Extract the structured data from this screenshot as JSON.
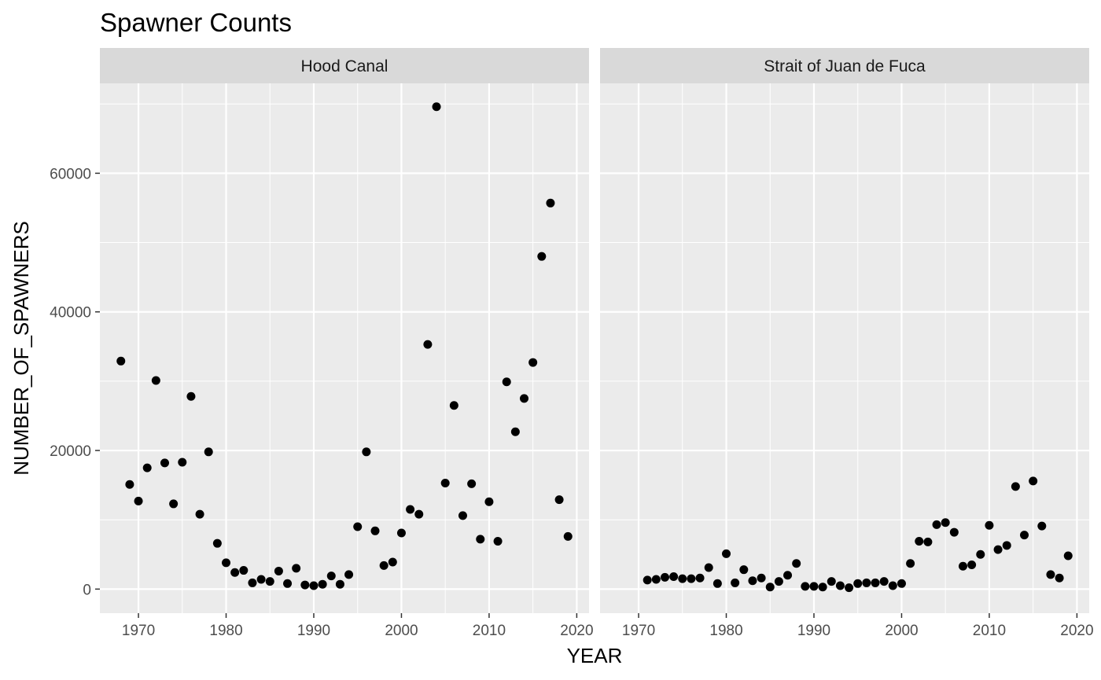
{
  "chart_data": {
    "type": "scatter",
    "title": "Spawner Counts",
    "xlabel": "YEAR",
    "ylabel": "NUMBER_OF_SPAWNERS",
    "xlim": [
      1965.6,
      2021.4
    ],
    "ylim": [
      -3475,
      72975
    ],
    "x_ticks": [
      1970,
      1980,
      1990,
      2000,
      2010,
      2020
    ],
    "y_ticks": [
      0,
      20000,
      40000,
      60000
    ],
    "x_tick_labels": [
      "1970",
      "1980",
      "1990",
      "2000",
      "2010",
      "2020"
    ],
    "y_tick_labels": [
      "0",
      "20000",
      "40000",
      "60000"
    ],
    "grid": true,
    "colors": {
      "panel_bg": "#EBEBEB",
      "strip_bg": "#D9D9D9",
      "grid": "#FFFFFF",
      "point": "#000000"
    },
    "facets": [
      {
        "label": "Hood Canal",
        "x": [
          1968,
          1969,
          1970,
          1971,
          1972,
          1973,
          1974,
          1975,
          1976,
          1977,
          1978,
          1979,
          1980,
          1981,
          1982,
          1983,
          1984,
          1985,
          1986,
          1987,
          1988,
          1989,
          1990,
          1991,
          1992,
          1993,
          1994,
          1995,
          1996,
          1997,
          1998,
          1999,
          2000,
          2001,
          2002,
          2003,
          2004,
          2005,
          2006,
          2007,
          2008,
          2009,
          2010,
          2011,
          2012,
          2013,
          2014,
          2015,
          2016,
          2017,
          2018,
          2019
        ],
        "y": [
          32900,
          15100,
          12700,
          17500,
          30100,
          18200,
          12300,
          18300,
          27800,
          10800,
          19800,
          6600,
          3800,
          2400,
          2700,
          900,
          1400,
          1100,
          2600,
          800,
          3000,
          600,
          500,
          700,
          1900,
          700,
          2100,
          9000,
          19800,
          8400,
          3400,
          3900,
          8100,
          11500,
          10800,
          35300,
          69600,
          15300,
          26500,
          10600,
          15200,
          7200,
          12600,
          6900,
          29900,
          22700,
          27500,
          32700,
          48000,
          55700,
          12900,
          7600
        ]
      },
      {
        "label": "Strait of Juan de Fuca",
        "x": [
          1971,
          1972,
          1973,
          1974,
          1975,
          1976,
          1977,
          1978,
          1979,
          1980,
          1981,
          1982,
          1983,
          1984,
          1985,
          1986,
          1987,
          1988,
          1989,
          1990,
          1991,
          1992,
          1993,
          1994,
          1995,
          1996,
          1997,
          1998,
          1999,
          2000,
          2001,
          2002,
          2003,
          2004,
          2005,
          2006,
          2007,
          2008,
          2009,
          2010,
          2011,
          2012,
          2013,
          2014,
          2015,
          2016,
          2017,
          2018,
          2019
        ],
        "y": [
          1300,
          1400,
          1700,
          1800,
          1500,
          1500,
          1600,
          3100,
          800,
          5100,
          900,
          2800,
          1200,
          1600,
          300,
          1100,
          2000,
          3700,
          400,
          400,
          300,
          1100,
          500,
          200,
          800,
          900,
          900,
          1100,
          500,
          800,
          3700,
          6900,
          6800,
          9300,
          9600,
          8200,
          3300,
          3500,
          5000,
          9200,
          5700,
          6300,
          14800,
          7800,
          15600,
          9100,
          2100,
          1600,
          4800
        ]
      }
    ]
  }
}
